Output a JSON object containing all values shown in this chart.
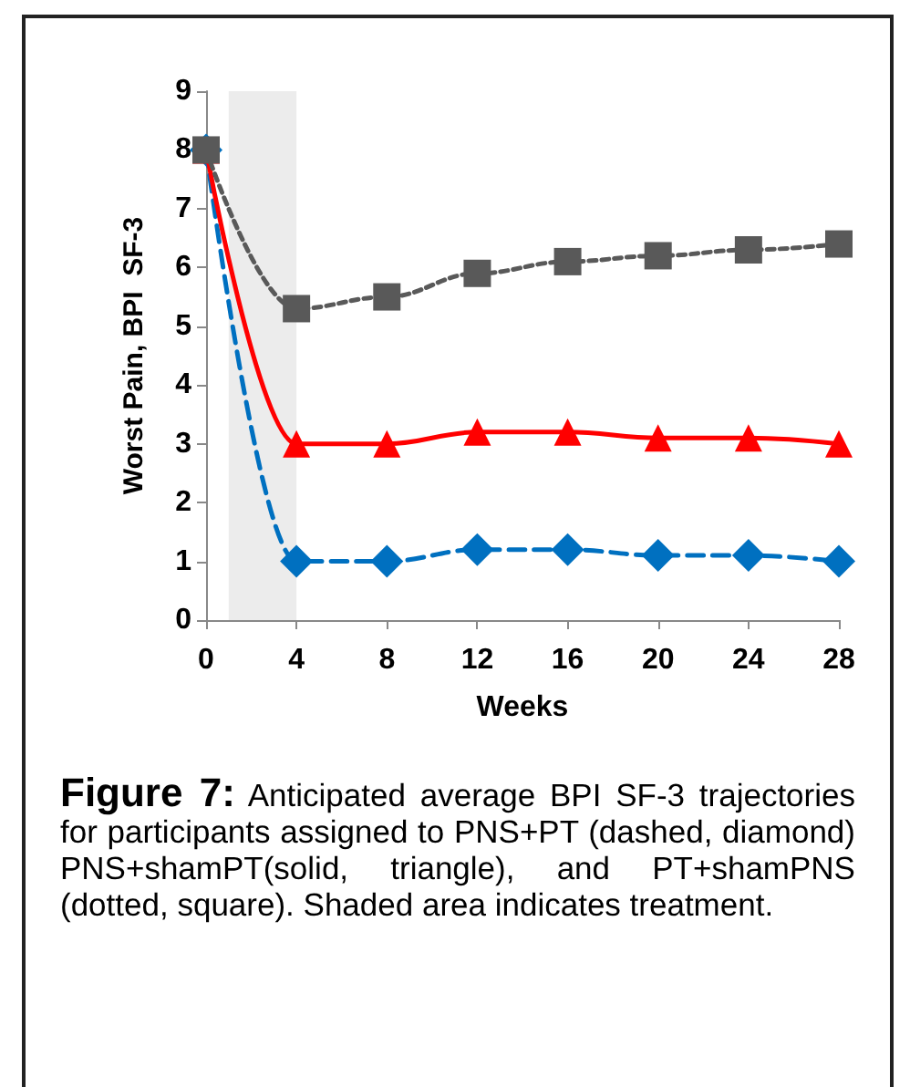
{
  "chart_data": {
    "type": "line",
    "xlabel": "Weeks",
    "ylabel": "Worst Pain, BPI  SF-3",
    "x": [
      0,
      4,
      8,
      12,
      16,
      20,
      24,
      28
    ],
    "xlim": [
      0,
      28
    ],
    "xticks": [
      0,
      4,
      8,
      12,
      16,
      20,
      24,
      28
    ],
    "ylim": [
      0,
      9
    ],
    "yticks": [
      0,
      1,
      2,
      3,
      4,
      5,
      6,
      7,
      8,
      9
    ],
    "grid": false,
    "series": [
      {
        "color": "#0070c0",
        "marker": "diamond",
        "line_style": "dashed",
        "values": [
          8,
          1,
          1,
          1.2,
          1.2,
          1.1,
          1.1,
          1
        ]
      },
      {
        "color": "#ff0000",
        "marker": "triangle",
        "line_style": "solid",
        "values": [
          8,
          3,
          3,
          3.2,
          3.2,
          3.1,
          3.1,
          3
        ]
      },
      {
        "color": "#595959",
        "marker": "square",
        "line_style": "dotted",
        "values": [
          8,
          5.3,
          5.5,
          5.9,
          6.1,
          6.2,
          6.3,
          6.4
        ]
      }
    ],
    "bands": [
      {
        "axis": "x",
        "from": 1,
        "to": 4,
        "color": "#ececec"
      }
    ],
    "annotations": [
      "Figure 7:",
      "Anticipated average BPI SF-3 trajectories for participants assigned to PNS+PT (dashed, diamond) PNS+shamPT(solid, triangle), and PT+shamPNS (dotted, square). Shaded area indicates treatment."
    ]
  }
}
